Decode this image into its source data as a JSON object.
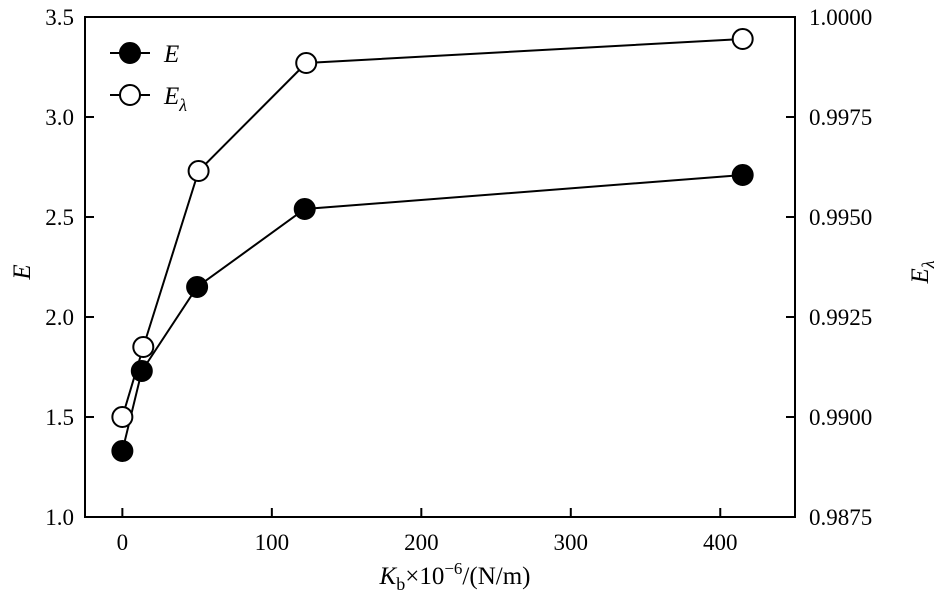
{
  "chart_data": {
    "type": "line",
    "x_axis": {
      "label_main": "K",
      "label_sub": "b",
      "label_rest": "×10",
      "label_exp": "−6",
      "label_unit": "/(N/m)",
      "range": [
        -25,
        450
      ],
      "ticks": [
        0,
        100,
        200,
        300,
        400
      ],
      "tick_labels": [
        "0",
        "100",
        "200",
        "300",
        "400"
      ]
    },
    "y_axis_left": {
      "label": "E",
      "range": [
        1.0,
        3.5
      ],
      "ticks": [
        1.0,
        1.5,
        2.0,
        2.5,
        3.0,
        3.5
      ],
      "tick_labels": [
        "1.0",
        "1.5",
        "2.0",
        "2.5",
        "3.0",
        "3.5"
      ]
    },
    "y_axis_right": {
      "label_main": "E",
      "label_sub": "λ",
      "range": [
        0.9875,
        1.0
      ],
      "ticks": [
        0.9875,
        0.99,
        0.9925,
        0.995,
        0.9975,
        1.0
      ],
      "tick_labels": [
        "0.9875",
        "0.9900",
        "0.9925",
        "0.9950",
        "0.9975",
        "1.0000"
      ]
    },
    "series": [
      {
        "name": "E",
        "axis": "left",
        "marker": "filled-circle",
        "x": [
          0,
          13,
          50,
          122,
          415
        ],
        "y": [
          1.33,
          1.73,
          2.15,
          2.54,
          2.71
        ]
      },
      {
        "name": "E_λ",
        "axis": "right",
        "marker": "open-circle",
        "x": [
          0,
          14,
          51,
          123,
          415
        ],
        "y": [
          0.99,
          0.99175,
          0.99615,
          0.99885,
          0.99945
        ]
      }
    ],
    "legend": {
      "position": "top-left",
      "entries": [
        {
          "main": "E",
          "sub": ""
        },
        {
          "main": "E",
          "sub": "λ"
        }
      ]
    },
    "grid": false
  }
}
